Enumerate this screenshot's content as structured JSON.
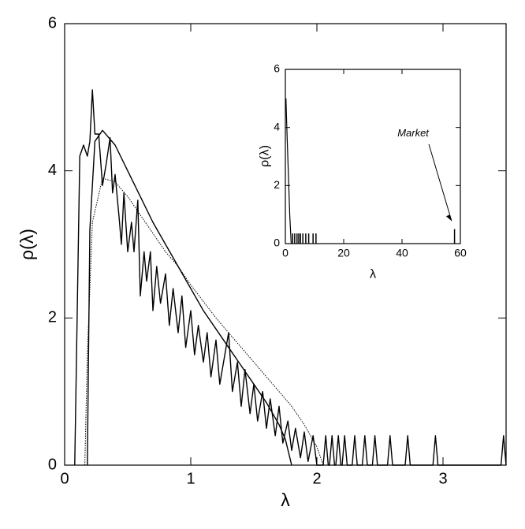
{
  "chart_data": [
    {
      "type": "line",
      "xlabel": "λ",
      "ylabel": "ρ(λ)",
      "xlim": [
        0,
        3.5
      ],
      "ylim": [
        0,
        6
      ],
      "xticks": [
        0,
        1,
        2,
        3
      ],
      "yticks": [
        0,
        2,
        4,
        6
      ],
      "series": [
        {
          "color": "#000000",
          "dash": "solid",
          "x": [
            0.08,
            0.12,
            0.15,
            0.18,
            0.2,
            0.22,
            0.24,
            0.27,
            0.3,
            0.33,
            0.36,
            0.38,
            0.4,
            0.43,
            0.45,
            0.47,
            0.5,
            0.53,
            0.55,
            0.58,
            0.6,
            0.63,
            0.65,
            0.68,
            0.7,
            0.73,
            0.76,
            0.8,
            0.83,
            0.86,
            0.9,
            0.93,
            0.96,
            1.0,
            1.03,
            1.06,
            1.1,
            1.13,
            1.16,
            1.2,
            1.23,
            1.27,
            1.3,
            1.33,
            1.37,
            1.4,
            1.43,
            1.47,
            1.5,
            1.53,
            1.57,
            1.6,
            1.63,
            1.67,
            1.7,
            1.73,
            1.77,
            1.8,
            1.83,
            1.87,
            1.9,
            1.93,
            1.97,
            2.0,
            2.05,
            2.07,
            2.09,
            2.1,
            2.12,
            2.14,
            2.15,
            2.17,
            2.19,
            2.2,
            2.22,
            2.24,
            2.28,
            2.3,
            2.32,
            2.36,
            2.38,
            2.4,
            2.44,
            2.46,
            2.48,
            2.56,
            2.58,
            2.6,
            2.7,
            2.72,
            2.74,
            2.92,
            2.94,
            2.96,
            3.46,
            3.48,
            3.5
          ],
          "values": [
            0,
            4.2,
            4.35,
            4.2,
            4.4,
            5.1,
            4.5,
            4.5,
            3.8,
            4.1,
            4.45,
            3.7,
            3.95,
            3.4,
            3.0,
            3.7,
            2.9,
            3.3,
            2.9,
            3.6,
            2.3,
            2.9,
            2.5,
            2.9,
            2.1,
            2.7,
            2.2,
            2.6,
            1.9,
            2.4,
            1.8,
            2.3,
            1.6,
            2.1,
            1.5,
            1.9,
            1.4,
            1.8,
            1.2,
            1.7,
            1.1,
            1.5,
            1.8,
            1.0,
            1.4,
            0.8,
            1.3,
            0.7,
            1.1,
            0.6,
            1.0,
            0.5,
            0.9,
            0.4,
            0.8,
            0.3,
            0.6,
            0.2,
            0.5,
            0.1,
            0.45,
            0.05,
            0.4,
            0,
            0,
            0.4,
            0,
            0,
            0.4,
            0,
            0,
            0.4,
            0,
            0,
            0.4,
            0,
            0,
            0.4,
            0,
            0,
            0.4,
            0,
            0,
            0.4,
            0,
            0,
            0.4,
            0,
            0,
            0.4,
            0,
            0,
            0.4,
            0,
            0,
            0.4,
            0
          ]
        },
        {
          "color": "#000000",
          "dash": "solid",
          "x": [
            0.18,
            0.2,
            0.24,
            0.3,
            0.4,
            0.5,
            0.6,
            0.7,
            0.8,
            0.9,
            1.0,
            1.1,
            1.2,
            1.3,
            1.4,
            1.5,
            1.6,
            1.7,
            1.75,
            1.8
          ],
          "values": [
            0,
            3.2,
            4.4,
            4.55,
            4.35,
            4.0,
            3.65,
            3.3,
            3.0,
            2.7,
            2.4,
            2.1,
            1.85,
            1.6,
            1.35,
            1.1,
            0.85,
            0.55,
            0.35,
            0
          ]
        },
        {
          "color": "#000000",
          "dash": "dotted",
          "x": [
            0.16,
            0.18,
            0.22,
            0.3,
            0.4,
            0.5,
            0.6,
            0.7,
            0.8,
            0.9,
            1.0,
            1.2,
            1.4,
            1.6,
            1.8,
            1.9,
            2.0,
            2.05
          ],
          "values": [
            0,
            1.5,
            3.3,
            3.9,
            3.85,
            3.65,
            3.4,
            3.15,
            2.9,
            2.7,
            2.45,
            2.0,
            1.6,
            1.2,
            0.8,
            0.55,
            0.25,
            0
          ]
        }
      ]
    },
    {
      "type": "line",
      "xlabel": "λ",
      "ylabel": "ρ(λ)",
      "annotation": "Market",
      "xlim": [
        0,
        60
      ],
      "ylim": [
        0,
        6
      ],
      "xticks": [
        0,
        20,
        40,
        60
      ],
      "yticks": [
        0,
        2,
        4,
        6
      ],
      "series": [
        {
          "color": "#000000",
          "dash": "solid",
          "x": [
            0.2,
            0.5,
            1,
            1.5,
            2
          ],
          "values": [
            5,
            4,
            2.5,
            1,
            0
          ]
        },
        {
          "color": "#000000",
          "style": "spike",
          "x": [
            2.5,
            3.2,
            4,
            4.6,
            5.2,
            6,
            7,
            8,
            9.5,
            10.5,
            58
          ],
          "values": [
            0.35,
            0.35,
            0.35,
            0.35,
            0.35,
            0.35,
            0.35,
            0.35,
            0.35,
            0.35,
            0.5
          ]
        }
      ]
    }
  ]
}
